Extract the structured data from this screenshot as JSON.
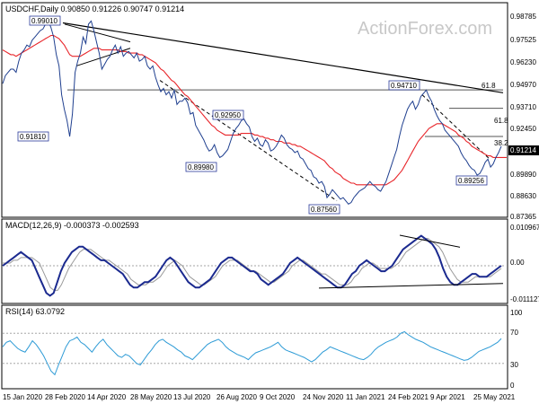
{
  "chart_data": {
    "type": "line",
    "watermark": "ActionForex.com",
    "main": {
      "header": "USDCHF,Daily  0.90850 0.91226 0.90747 0.91214",
      "yaxis_labels": [
        "0.98785",
        "0.97525",
        "0.96230",
        "0.94970",
        "0.93710",
        "0.92450",
        "0.91214",
        "0.89890",
        "0.88630",
        "0.87365"
      ],
      "current_price": "0.91214",
      "ylim": [
        0.87,
        0.993
      ],
      "series": [
        {
          "role": "price",
          "values": [
            0.951,
            0.956,
            0.958,
            0.96,
            0.96,
            0.958,
            0.965,
            0.97,
            0.972,
            0.975,
            0.974,
            0.978,
            0.98,
            0.982,
            0.984,
            0.985,
            0.988,
            0.99,
            0.986,
            0.98,
            0.969,
            0.962,
            0.944,
            0.935,
            0.928,
            0.918,
            0.932,
            0.958,
            0.965,
            0.97,
            0.98,
            0.976,
            0.988,
            0.99,
            0.984,
            0.977,
            0.97,
            0.96,
            0.963,
            0.966,
            0.968,
            0.972,
            0.975,
            0.97,
            0.974,
            0.968,
            0.97,
            0.971,
            0.969,
            0.967,
            0.97,
            0.965,
            0.966,
            0.968,
            0.962,
            0.96,
            0.962,
            0.955,
            0.95,
            0.946,
            0.948,
            0.944,
            0.946,
            0.942,
            0.947,
            0.938,
            0.94,
            0.94,
            0.942,
            0.939,
            0.932,
            0.933,
            0.925,
            0.922,
            0.919,
            0.916,
            0.912,
            0.909,
            0.91,
            0.913,
            0.908,
            0.905,
            0.906,
            0.908,
            0.91,
            0.915,
            0.92,
            0.923,
            0.925,
            0.928,
            0.929,
            0.926,
            0.924,
            0.918,
            0.915,
            0.917,
            0.913,
            0.912,
            0.916,
            0.914,
            0.909,
            0.91,
            0.912,
            0.915,
            0.919,
            0.917,
            0.913,
            0.911,
            0.91,
            0.908,
            0.909,
            0.905,
            0.904,
            0.901,
            0.898,
            0.897,
            0.893,
            0.892,
            0.889,
            0.89,
            0.887,
            0.88,
            0.882,
            0.885,
            0.883,
            0.881,
            0.879,
            0.88,
            0.878,
            0.876,
            0.877,
            0.88,
            0.882,
            0.884,
            0.885,
            0.886,
            0.888,
            0.89,
            0.888,
            0.887,
            0.885,
            0.884,
            0.887,
            0.89,
            0.895,
            0.9,
            0.905,
            0.91,
            0.918,
            0.925,
            0.93,
            0.935,
            0.938,
            0.94,
            0.935,
            0.938,
            0.943,
            0.945,
            0.947,
            0.943,
            0.94,
            0.935,
            0.931,
            0.928,
            0.926,
            0.922,
            0.92,
            0.918,
            0.916,
            0.914,
            0.912,
            0.908,
            0.905,
            0.903,
            0.9,
            0.898,
            0.897,
            0.894,
            0.895,
            0.898,
            0.902,
            0.904,
            0.899,
            0.901,
            0.905,
            0.908,
            0.912
          ],
          "color": "#1f3f8f"
        },
        {
          "role": "moving-average-red",
          "values": [
            0.972,
            0.971,
            0.97,
            0.969,
            0.969,
            0.968,
            0.969,
            0.97,
            0.971,
            0.972,
            0.973,
            0.974,
            0.975,
            0.976,
            0.977,
            0.978,
            0.979,
            0.98,
            0.981,
            0.981,
            0.98,
            0.979,
            0.977,
            0.975,
            0.972,
            0.969,
            0.968,
            0.968,
            0.968,
            0.968,
            0.969,
            0.97,
            0.971,
            0.972,
            0.973,
            0.973,
            0.973,
            0.972,
            0.972,
            0.972,
            0.972,
            0.972,
            0.972,
            0.972,
            0.971,
            0.971,
            0.971,
            0.97,
            0.97,
            0.97,
            0.97,
            0.969,
            0.969,
            0.968,
            0.967,
            0.966,
            0.965,
            0.964,
            0.962,
            0.96,
            0.959,
            0.957,
            0.955,
            0.953,
            0.952,
            0.95,
            0.948,
            0.946,
            0.944,
            0.943,
            0.941,
            0.939,
            0.937,
            0.935,
            0.933,
            0.931,
            0.929,
            0.927,
            0.925,
            0.924,
            0.922,
            0.921,
            0.92,
            0.919,
            0.919,
            0.919,
            0.919,
            0.919,
            0.919,
            0.92,
            0.92,
            0.92,
            0.92,
            0.92,
            0.919,
            0.919,
            0.918,
            0.918,
            0.917,
            0.917,
            0.916,
            0.916,
            0.915,
            0.915,
            0.915,
            0.914,
            0.914,
            0.914,
            0.913,
            0.913,
            0.912,
            0.912,
            0.911,
            0.91,
            0.909,
            0.908,
            0.907,
            0.906,
            0.905,
            0.904,
            0.903,
            0.901,
            0.899,
            0.898,
            0.896,
            0.895,
            0.894,
            0.892,
            0.891,
            0.89,
            0.889,
            0.889,
            0.888,
            0.888,
            0.888,
            0.888,
            0.888,
            0.888,
            0.888,
            0.888,
            0.888,
            0.888,
            0.888,
            0.888,
            0.889,
            0.89,
            0.891,
            0.893,
            0.895,
            0.897,
            0.9,
            0.903,
            0.906,
            0.909,
            0.912,
            0.915,
            0.917,
            0.919,
            0.921,
            0.923,
            0.924,
            0.925,
            0.926,
            0.926,
            0.926,
            0.925,
            0.924,
            0.923,
            0.922,
            0.921,
            0.919,
            0.918,
            0.917,
            0.915,
            0.914,
            0.912,
            0.911,
            0.91,
            0.909,
            0.908,
            0.907,
            0.906,
            0.906,
            0.905,
            0.905,
            0.905,
            0.905,
            0.905,
            0.905
          ],
          "color": "#e8262b"
        }
      ],
      "hlines": [
        {
          "label": "0.99010",
          "value": 0.9901
        },
        {
          "label": "0.91810",
          "value": 0.9181
        },
        {
          "label": "0.89980",
          "value": 0.8998
        },
        {
          "label": "0.92950",
          "value": 0.9295
        },
        {
          "label": "0.87560",
          "value": 0.8756
        },
        {
          "label": "0.94710",
          "value": 0.9471
        },
        {
          "label": "0.89256",
          "value": 0.8926
        }
      ],
      "fib_labels": [
        "61.8",
        "61.8",
        "38.2"
      ]
    },
    "macd": {
      "header": "MACD(12,26,9) -0.000373 -0.002593",
      "yaxis_labels": [
        "0.010967",
        "0.00",
        "-0.011127"
      ],
      "ylim": [
        -0.0125,
        0.0125
      ],
      "series": [
        {
          "role": "macd",
          "values": [
            0.0,
            0.001,
            0.002,
            0.003,
            0.004,
            0.005,
            0.004,
            0.003,
            0.002,
            -0.001,
            -0.004,
            -0.007,
            -0.01,
            -0.011,
            -0.01,
            -0.006,
            -0.002,
            0.001,
            0.003,
            0.005,
            0.006,
            0.007,
            0.007,
            0.006,
            0.005,
            0.004,
            0.003,
            0.002,
            0.002,
            0.001,
            0.0,
            -0.001,
            -0.002,
            -0.003,
            -0.005,
            -0.007,
            -0.008,
            -0.008,
            -0.007,
            -0.006,
            -0.006,
            -0.005,
            -0.004,
            -0.002,
            0.0,
            0.002,
            0.003,
            0.002,
            0.0,
            -0.002,
            -0.004,
            -0.006,
            -0.007,
            -0.008,
            -0.008,
            -0.007,
            -0.006,
            -0.005,
            -0.003,
            -0.001,
            0.001,
            0.002,
            0.003,
            0.003,
            0.002,
            0.001,
            0.0,
            -0.001,
            -0.002,
            -0.002,
            -0.003,
            -0.005,
            -0.006,
            -0.007,
            -0.006,
            -0.005,
            -0.004,
            -0.003,
            -0.001,
            0.001,
            0.002,
            0.003,
            0.002,
            0.001,
            0.0,
            -0.001,
            -0.002,
            -0.003,
            -0.004,
            -0.005,
            -0.006,
            -0.007,
            -0.008,
            -0.008,
            -0.007,
            -0.005,
            -0.003,
            -0.002,
            0.0,
            0.001,
            0.002,
            0.001,
            0.0,
            -0.001,
            -0.002,
            -0.002,
            -0.001,
            0.0,
            0.002,
            0.004,
            0.006,
            0.007,
            0.008,
            0.009,
            0.01,
            0.011,
            0.01,
            0.009,
            0.008,
            0.006,
            0.003,
            -0.001,
            -0.004,
            -0.006,
            -0.007,
            -0.007,
            -0.006,
            -0.005,
            -0.004,
            -0.003,
            -0.003,
            -0.004,
            -0.004,
            -0.004,
            -0.003,
            -0.002,
            -0.001,
            0.0
          ],
          "color": "#1b2a8f"
        },
        {
          "role": "signal",
          "values": [
            0.001,
            0.001,
            0.001,
            0.002,
            0.002,
            0.003,
            0.003,
            0.003,
            0.003,
            0.002,
            0.001,
            -0.002,
            -0.005,
            -0.008,
            -0.009,
            -0.009,
            -0.007,
            -0.004,
            -0.001,
            0.001,
            0.003,
            0.005,
            0.006,
            0.006,
            0.006,
            0.005,
            0.004,
            0.003,
            0.002,
            0.002,
            0.001,
            0.0,
            -0.001,
            -0.002,
            -0.003,
            -0.005,
            -0.006,
            -0.007,
            -0.007,
            -0.007,
            -0.006,
            -0.006,
            -0.005,
            -0.004,
            -0.002,
            0.0,
            0.001,
            0.002,
            0.001,
            0.0,
            -0.002,
            -0.004,
            -0.005,
            -0.006,
            -0.007,
            -0.007,
            -0.006,
            -0.005,
            -0.004,
            -0.002,
            0.0,
            0.001,
            0.002,
            0.002,
            0.002,
            0.001,
            0.0,
            -0.001,
            -0.002,
            -0.002,
            -0.003,
            -0.004,
            -0.005,
            -0.006,
            -0.006,
            -0.005,
            -0.004,
            -0.003,
            -0.002,
            0.0,
            0.001,
            0.002,
            0.002,
            0.001,
            0.0,
            -0.001,
            -0.002,
            -0.003,
            -0.003,
            -0.004,
            -0.005,
            -0.006,
            -0.007,
            -0.007,
            -0.007,
            -0.006,
            -0.004,
            -0.003,
            -0.001,
            0.0,
            0.001,
            0.001,
            0.0,
            -0.001,
            -0.001,
            -0.001,
            -0.001,
            0.0,
            0.001,
            0.003,
            0.005,
            0.006,
            0.007,
            0.008,
            0.009,
            0.01,
            0.01,
            0.009,
            0.008,
            0.007,
            0.005,
            0.002,
            -0.001,
            -0.003,
            -0.005,
            -0.006,
            -0.006,
            -0.006,
            -0.005,
            -0.004,
            -0.004,
            -0.004,
            -0.004,
            -0.004,
            -0.003,
            -0.002,
            -0.001
          ],
          "color": "#9a9a9a"
        }
      ]
    },
    "rsi": {
      "header": "RSI(14) 63.0792",
      "yaxis_labels": [
        "100",
        "70",
        "30",
        "0"
      ],
      "ylim": [
        0,
        100
      ],
      "values": [
        52,
        58,
        60,
        55,
        50,
        47,
        45,
        52,
        60,
        55,
        48,
        40,
        30,
        20,
        15,
        28,
        40,
        52,
        60,
        62,
        65,
        58,
        55,
        50,
        45,
        52,
        58,
        62,
        55,
        50,
        45,
        40,
        38,
        42,
        40,
        35,
        30,
        28,
        35,
        42,
        48,
        55,
        60,
        62,
        58,
        55,
        52,
        48,
        45,
        40,
        38,
        35,
        40,
        45,
        50,
        55,
        58,
        60,
        62,
        58,
        52,
        48,
        45,
        42,
        40,
        38,
        35,
        40,
        44,
        46,
        48,
        50,
        52,
        55,
        58,
        52,
        48,
        46,
        44,
        42,
        40,
        38,
        35,
        32,
        35,
        40,
        45,
        48,
        52,
        50,
        48,
        46,
        44,
        42,
        40,
        38,
        36,
        35,
        38,
        42,
        48,
        52,
        55,
        58,
        60,
        62,
        65,
        70,
        72,
        68,
        65,
        62,
        60,
        58,
        55,
        52,
        50,
        48,
        46,
        44,
        42,
        40,
        38,
        36,
        34,
        35,
        38,
        42,
        46,
        48,
        50,
        52,
        55,
        58,
        63
      ],
      "color": "#2e9bd6"
    },
    "x_tick_labels": [
      "15 Jan 2020",
      "28 Feb 2020",
      "14 Apr 2020",
      "28 May 2020",
      "13 Jul 2020",
      "26 Aug 2020",
      "9 Oct 2020",
      "24 Nov 2020",
      "11 Jan 2021",
      "24 Feb 2021",
      "9 Apr 2021",
      "25 May 2021"
    ]
  }
}
